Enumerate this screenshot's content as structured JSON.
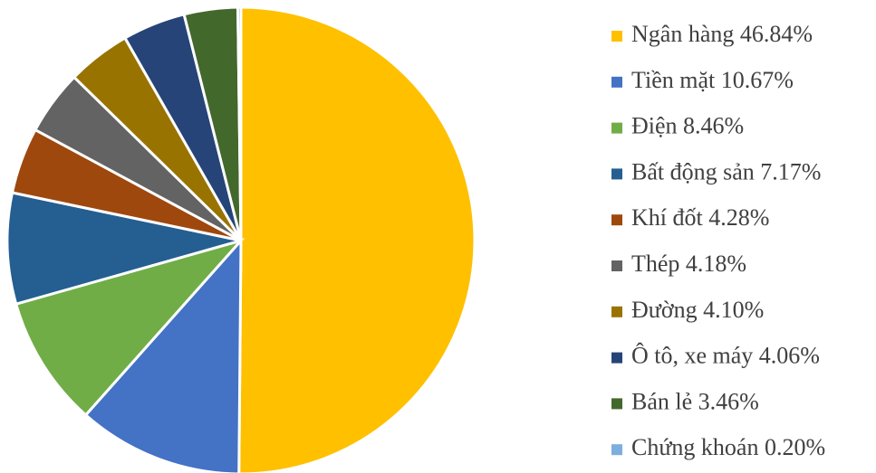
{
  "chart_data": {
    "type": "pie",
    "categories": [
      "Ngân hàng 46.84%",
      "Tiền mặt 10.67%",
      "Điện 8.46%",
      "Bất động sản 7.17%",
      "Khí đốt 4.28%",
      "Thép 4.18%",
      "Đường 4.10%",
      "Ô tô, xe máy 4.06%",
      "Bán lẻ 3.46%",
      "Chứng khoán 0.20%"
    ],
    "values": [
      46.84,
      10.67,
      8.46,
      7.17,
      4.28,
      4.18,
      4.1,
      4.06,
      3.46,
      0.2
    ],
    "colors": [
      "#ffc000",
      "#4472c4",
      "#70ad47",
      "#255e91",
      "#9e480e",
      "#636363",
      "#997300",
      "#264478",
      "#43682b",
      "#7cafdd"
    ],
    "legend": "right"
  }
}
